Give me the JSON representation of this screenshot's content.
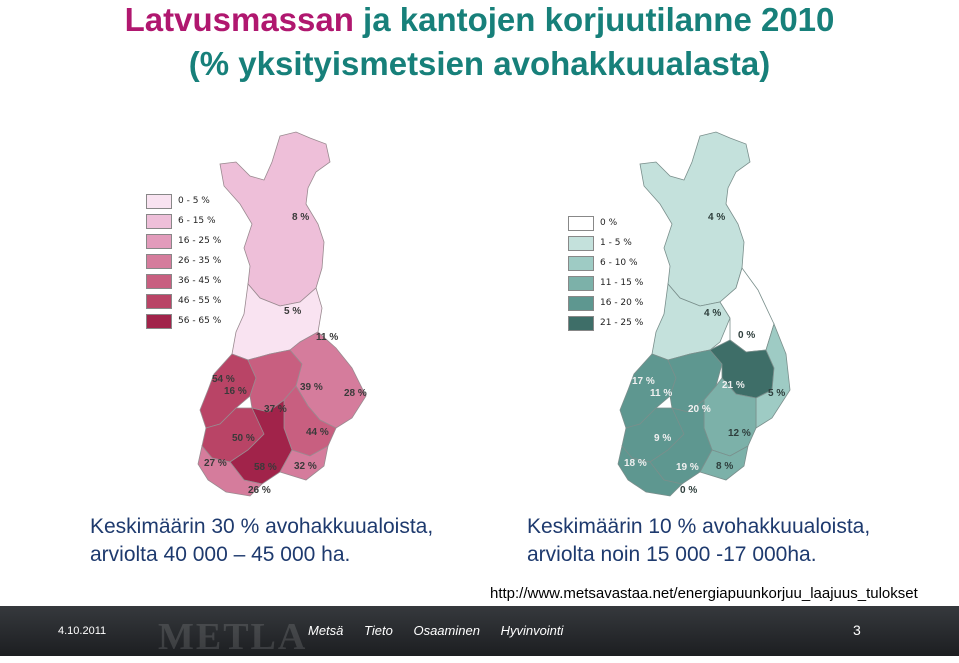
{
  "title": {
    "accent_word": "Latvusmassan",
    "line1_rest": " ja kantojen korjuutilanne 2010",
    "line2": "(% yksityismetsien avohakkuualasta)",
    "accent_color": "#b0176f",
    "main_color": "#17807a"
  },
  "left_map": {
    "legend": [
      {
        "label": "0 - 5 %",
        "color": "#f9e3f1"
      },
      {
        "label": "6 - 15 %",
        "color": "#eebfd9"
      },
      {
        "label": "16 - 25 %",
        "color": "#e29bbb"
      },
      {
        "label": "26 - 35 %",
        "color": "#d57c9c"
      },
      {
        "label": "36 - 45 %",
        "color": "#c85f80"
      },
      {
        "label": "46 - 55 %",
        "color": "#b94466"
      },
      {
        "label": "56 - 65 %",
        "color": "#a1234a"
      }
    ],
    "region_labels": [
      "8 %",
      "5 %",
      "11 %",
      "54 %",
      "16 %",
      "39 %",
      "28 %",
      "37 %",
      "44 %",
      "50 %",
      "27 %",
      "58 %",
      "32 %",
      "26 %"
    ],
    "caption_line1": "Keskimäärin 30 % avohakkuualoista,",
    "caption_line2": "arviolta 40 000 – 45 000 ha."
  },
  "right_map": {
    "legend": [
      {
        "label": "0 %",
        "color": "#ffffff"
      },
      {
        "label": "1 - 5 %",
        "color": "#c4e1dc"
      },
      {
        "label": "6 - 10 %",
        "color": "#9ecbc4"
      },
      {
        "label": "11 - 15 %",
        "color": "#7cb1a9"
      },
      {
        "label": "16 - 20 %",
        "color": "#5e9790"
      },
      {
        "label": "21 - 25 %",
        "color": "#3e6e68"
      }
    ],
    "region_labels": [
      "4 %",
      "4 %",
      "0 %",
      "17 %",
      "11 %",
      "21 %",
      "5 %",
      "20 %",
      "12 %",
      "9 %",
      "18 %",
      "19 %",
      "8 %",
      "0 %"
    ],
    "caption_line1": "Keskimäärin 10 % avohakkuualoista,",
    "caption_line2": "arviolta noin 15 000 -17 000ha."
  },
  "source_url": "http://www.metsavastaa.net/energiapuunkorjuu_laajuus_tulokset",
  "footer": {
    "date": "4.10.2011",
    "logo": "METLA",
    "tagline": [
      "Metsä",
      "Tieto",
      "Osaaminen",
      "Hyvinvointi"
    ],
    "page_number": "3"
  }
}
